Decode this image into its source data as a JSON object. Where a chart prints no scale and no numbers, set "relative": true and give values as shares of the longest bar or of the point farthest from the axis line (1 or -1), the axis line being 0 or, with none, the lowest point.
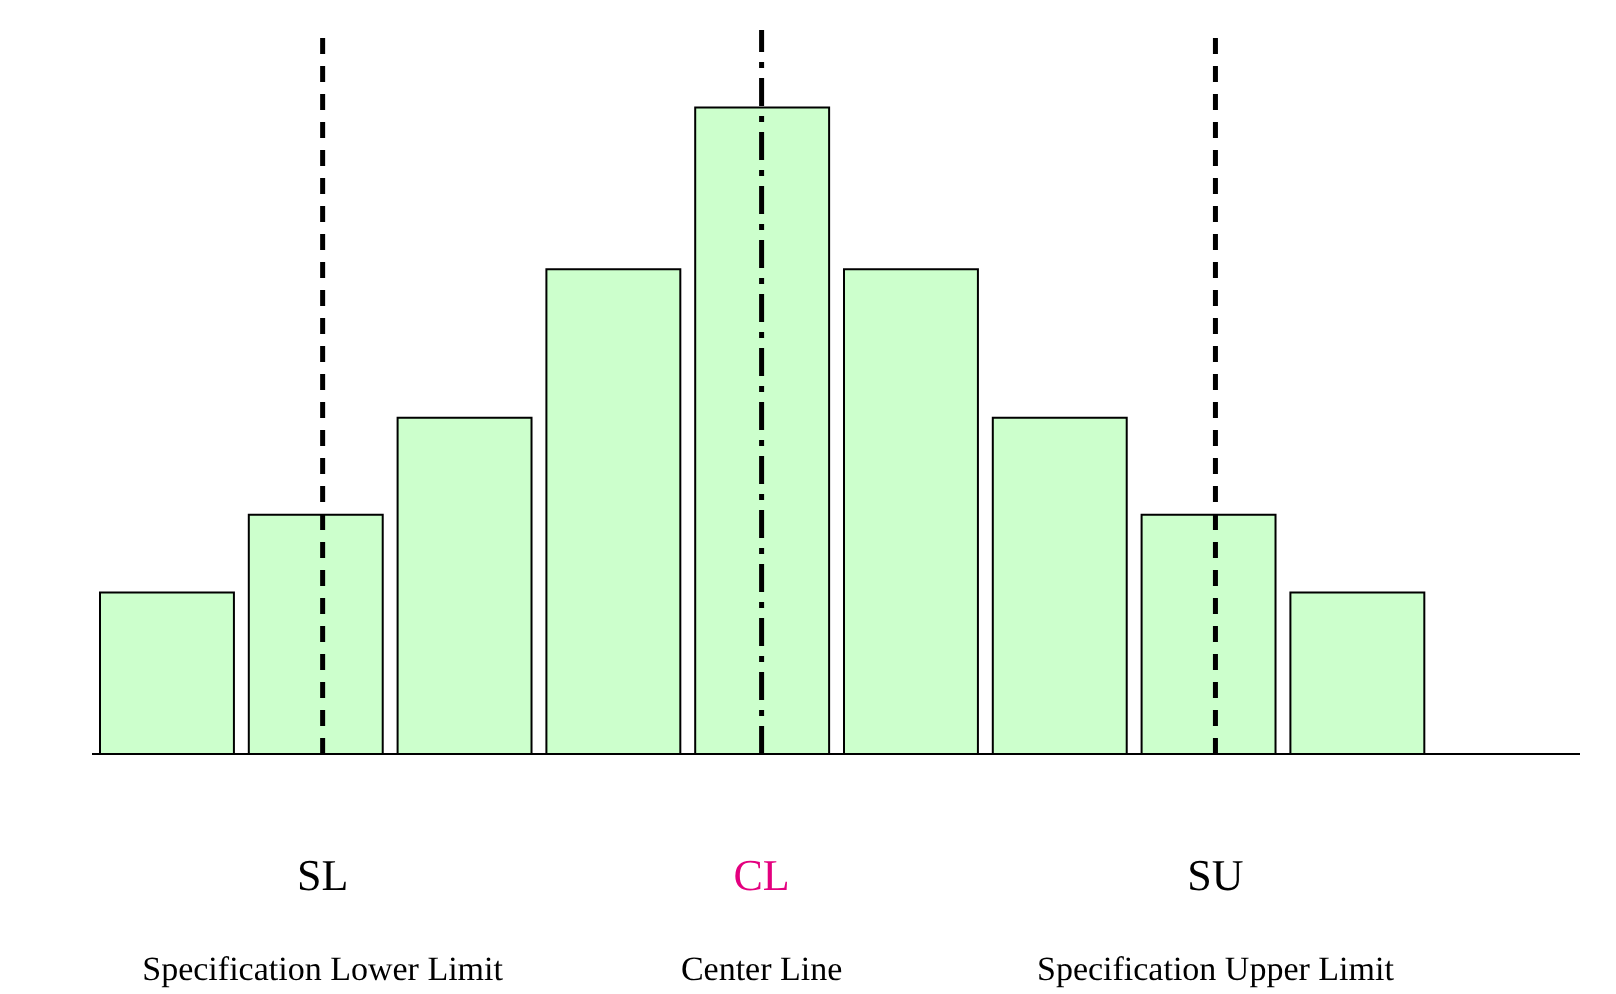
{
  "chart_data": {
    "type": "bar",
    "relative": true,
    "categories": [
      null,
      null,
      null,
      null,
      null,
      null,
      null,
      null,
      null
    ],
    "values": [
      0.25,
      0.37,
      0.52,
      0.75,
      1,
      0.75,
      0.52,
      0.37,
      0.25
    ],
    "color": "#ccffcc",
    "annotations": [
      "SL",
      "CL",
      "SU",
      "Specification Lower Limit",
      "Center Line",
      "Specification Upper Limit"
    ]
  }
}
